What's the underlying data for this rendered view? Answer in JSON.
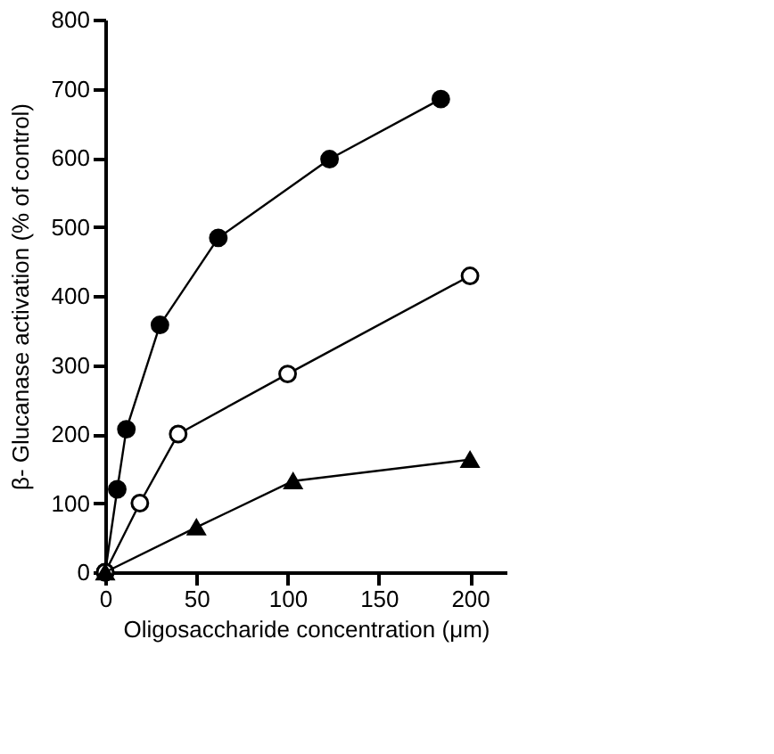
{
  "chart_data": {
    "type": "line",
    "xlabel": "Oligosaccharide concentration (μm)",
    "ylabel": "β- Glucanase activation (% of control)",
    "xlim": [
      0,
      220
    ],
    "ylim": [
      0,
      800
    ],
    "xticks": [
      0,
      50,
      100,
      150,
      200
    ],
    "yticks": [
      0,
      100,
      200,
      300,
      400,
      500,
      600,
      700,
      800
    ],
    "grid": false,
    "series": [
      {
        "color": "#000000",
        "marker": "circle",
        "x": [
          0,
          6.6,
          11.6,
          30,
          62,
          123,
          184
        ],
        "values": [
          0,
          120,
          207,
          358,
          484,
          598,
          685
        ]
      },
      {
        "color": "#ffffff",
        "marker": "circle",
        "x": [
          0,
          19,
          40,
          100,
          200
        ],
        "values": [
          0,
          100,
          200,
          287,
          429
        ]
      },
      {
        "color": "#000000",
        "marker": "triangle",
        "x": [
          0,
          50,
          103,
          200
        ],
        "values": [
          0,
          65,
          132,
          163
        ]
      }
    ]
  }
}
